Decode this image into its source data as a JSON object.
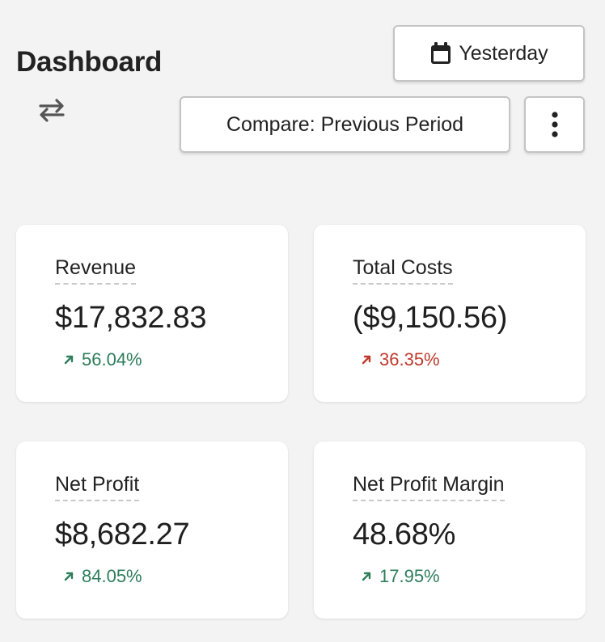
{
  "header": {
    "title": "Dashboard",
    "date_button_label": "Yesterday",
    "compare_button_label": "Compare: Previous Period"
  },
  "icons": {
    "swap": "swap-arrows-icon",
    "calendar": "calendar-icon",
    "more": "more-vertical-icon",
    "trend_up": "arrow-up-right-icon"
  },
  "colors": {
    "positive": "#2e7d5b",
    "negative": "#c0392b",
    "background": "#f3f3f3",
    "card": "#ffffff"
  },
  "metrics": [
    {
      "label": "Revenue",
      "value": "$17,832.83",
      "change": "56.04%",
      "trend": "up",
      "sentiment": "good"
    },
    {
      "label": "Total Costs",
      "value": "($9,150.56)",
      "change": "36.35%",
      "trend": "up",
      "sentiment": "bad"
    },
    {
      "label": "Net Profit",
      "value": "$8,682.27",
      "change": "84.05%",
      "trend": "up",
      "sentiment": "good"
    },
    {
      "label": "Net Profit Margin",
      "value": "48.68%",
      "change": "17.95%",
      "trend": "up",
      "sentiment": "good"
    }
  ]
}
